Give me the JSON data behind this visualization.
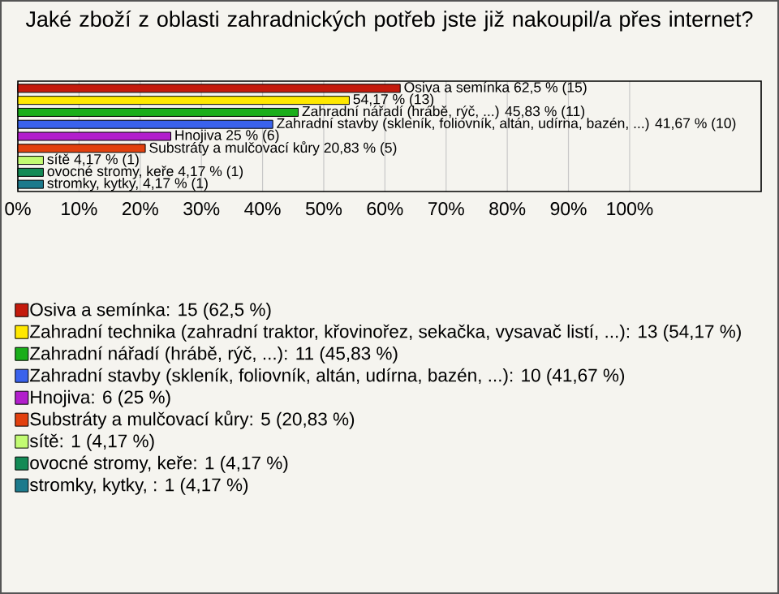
{
  "chart_data": {
    "type": "bar",
    "orientation": "horizontal",
    "stacked": true,
    "title": "Jaké zboží z oblasti zahradnických potřeb jste již nakoupil/a přes internet?",
    "categories": [
      null,
      null,
      null,
      null,
      null,
      null,
      null,
      null,
      null
    ],
    "series": [
      {
        "name": "Osiva a semínka: 15 (62,5 %)",
        "color": "#c41a0c",
        "values": [
          62.5,
          null,
          null,
          null,
          null,
          null,
          null,
          null,
          null
        ],
        "value_labels": [
          "Osiva a semínka 62,5 % (15)",
          null,
          null,
          null,
          null,
          null,
          null,
          null,
          null
        ]
      },
      {
        "name": "Zahradní technika (zahradní traktor, křovinořez, sekačka, vysavač listí, ...): 13 (54,17 %)",
        "color": "#ffe800",
        "values": [
          null,
          54.17,
          null,
          null,
          null,
          null,
          null,
          null,
          null
        ],
        "value_labels": [
          null,
          "54,17 % (13)",
          null,
          null,
          null,
          null,
          null,
          null,
          null
        ]
      },
      {
        "name": "Zahradní nářadí (hrábě, rýč, ...): 11 (45,83 %)",
        "color": "#1aae1a",
        "values": [
          null,
          null,
          45.83,
          null,
          null,
          null,
          null,
          null,
          null
        ],
        "value_labels": [
          null,
          null,
          "Zahradní nářadí (hrábě, rýč, ...) 45,83 % (11)",
          null,
          null,
          null,
          null,
          null,
          null
        ]
      },
      {
        "name": "Zahradní stavby (skleník, foliovník, altán, udírna, bazén, ...): 10 (41,67 %)",
        "color": "#3a62ec",
        "values": [
          null,
          null,
          null,
          41.67,
          null,
          null,
          null,
          null,
          null
        ],
        "value_labels": [
          null,
          null,
          null,
          "Zahradní stavby (skleník, foliovník, altán, udírna, bazén, ...) 41,67 % (10)",
          null,
          null,
          null,
          null,
          null
        ]
      },
      {
        "name": "Hnojiva: 6 (25 %)",
        "color": "#b21fcc",
        "values": [
          null,
          null,
          null,
          null,
          25,
          null,
          null,
          null,
          null
        ],
        "value_labels": [
          null,
          null,
          null,
          null,
          "Hnojiva 25 % (6)",
          null,
          null,
          null,
          null
        ]
      },
      {
        "name": "Substráty a mulčovací kůry: 5 (20,83 %)",
        "color": "#e2400e",
        "values": [
          null,
          null,
          null,
          null,
          null,
          20.83,
          null,
          null,
          null
        ],
        "value_labels": [
          null,
          null,
          null,
          null,
          null,
          "Substráty a mulčovací kůry 20,83 % (5)",
          null,
          null,
          null
        ]
      },
      {
        "name": "sítě: 1 (4,17 %)",
        "color": "#c2fb72",
        "values": [
          null,
          null,
          null,
          null,
          null,
          null,
          4.17,
          null,
          null
        ],
        "value_labels": [
          null,
          null,
          null,
          null,
          null,
          null,
          "sítě 4,17 % (1)",
          null,
          null
        ]
      },
      {
        "name": "ovocné stromy, keře: 1 (4,17 %)",
        "color": "#138a55",
        "values": [
          null,
          null,
          null,
          null,
          null,
          null,
          null,
          4.17,
          null
        ],
        "value_labels": [
          null,
          null,
          null,
          null,
          null,
          null,
          null,
          "ovocné stromy, keře 4,17 % (1)",
          null
        ]
      },
      {
        "name": "stromky, kytky, : 1 (4,17 %)",
        "color": "#1c7a8c",
        "values": [
          null,
          null,
          null,
          null,
          null,
          null,
          null,
          null,
          4.17
        ],
        "value_labels": [
          null,
          null,
          null,
          null,
          null,
          null,
          null,
          null,
          "stromky, kytky,  4,17 % (1)"
        ]
      }
    ],
    "xlim": [
      0,
      121.5
    ],
    "xticks": [
      {
        "value": 0,
        "label": "0%"
      },
      {
        "value": 10,
        "label": "10%"
      },
      {
        "value": 20,
        "label": "20%"
      },
      {
        "value": 30,
        "label": "30%"
      },
      {
        "value": 40,
        "label": "40%"
      },
      {
        "value": 50,
        "label": "50%"
      },
      {
        "value": 60,
        "label": "60%"
      },
      {
        "value": 70,
        "label": "70%"
      },
      {
        "value": 80,
        "label": "80%"
      },
      {
        "value": 90,
        "label": "90%"
      },
      {
        "value": 100,
        "label": "100%"
      }
    ],
    "grid": "x",
    "legend": "bottom",
    "tick_labels": "x"
  }
}
